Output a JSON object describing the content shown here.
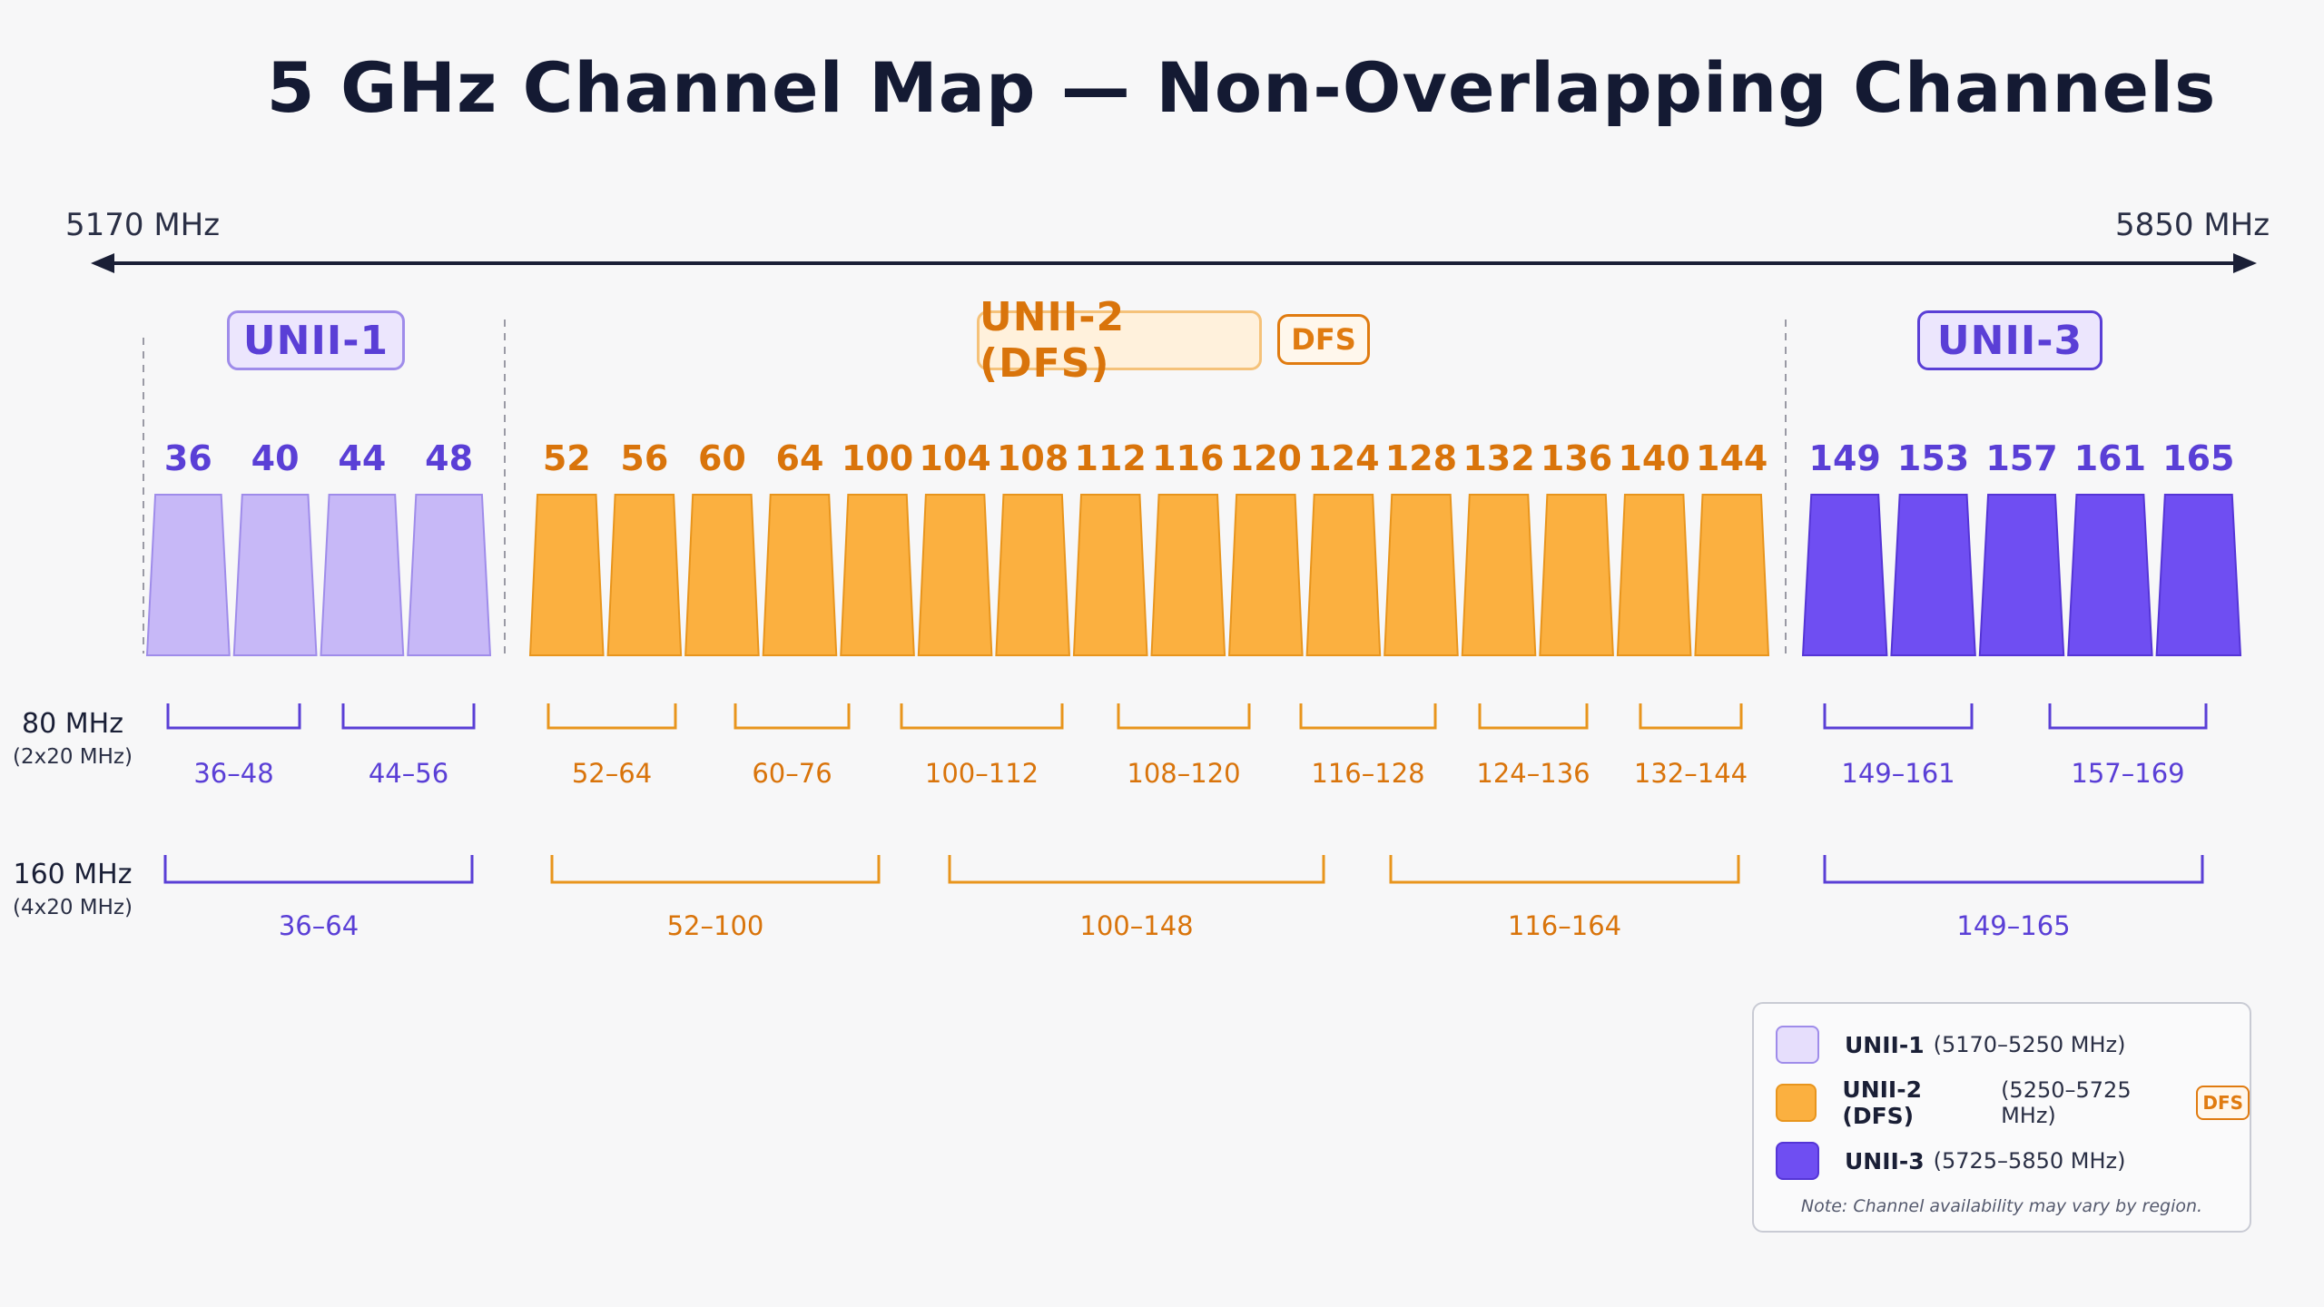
{
  "title": "5 GHz Channel Map — Non-Overlapping Channels",
  "freq_axis": {
    "start_label": "5170 MHz",
    "end_label": "5850 MHz"
  },
  "bands": [
    {
      "key": "unii1",
      "label": "UNII-1",
      "channels": [
        "36",
        "40",
        "44",
        "48"
      ]
    },
    {
      "key": "unii2",
      "label": "UNII-2 (DFS)",
      "badge": "DFS",
      "channels": [
        "52",
        "56",
        "60",
        "64",
        "100",
        "104",
        "108",
        "112",
        "116",
        "120",
        "124",
        "128",
        "132",
        "136",
        "140",
        "144"
      ]
    },
    {
      "key": "unii3",
      "label": "UNII-3",
      "channels": [
        "149",
        "153",
        "157",
        "161",
        "165"
      ]
    }
  ],
  "rows": {
    "w80": {
      "label": "80 MHz",
      "sublabel": "(2x20 MHz)"
    },
    "w160": {
      "label": "160 MHz",
      "sublabel": "(4x20 MHz)"
    }
  },
  "brackets_80": [
    {
      "band": "unii1",
      "label": "36–48"
    },
    {
      "band": "unii1",
      "label": "44–56"
    },
    {
      "band": "unii2",
      "label": "52–64"
    },
    {
      "band": "unii2",
      "label": "60–76"
    },
    {
      "band": "unii2",
      "label": "100–112"
    },
    {
      "band": "unii2",
      "label": "108–120"
    },
    {
      "band": "unii2",
      "label": "116–128"
    },
    {
      "band": "unii2",
      "label": "124–136"
    },
    {
      "band": "unii2",
      "label": "132–144"
    },
    {
      "band": "unii3",
      "label": "149–161"
    },
    {
      "band": "unii3",
      "label": "157–169"
    }
  ],
  "brackets_160": [
    {
      "band": "unii1",
      "label": "36–64"
    },
    {
      "band": "unii2",
      "label": "52–100"
    },
    {
      "band": "unii2",
      "label": "100–148"
    },
    {
      "band": "unii2",
      "label": "116–164"
    },
    {
      "band": "unii3",
      "label": "149–165"
    }
  ],
  "legend": {
    "items": [
      {
        "band": "unii1",
        "name": "UNII-1",
        "range": "(5170–5250 MHz)"
      },
      {
        "band": "unii2",
        "name": "UNII-2 (DFS)",
        "range": "(5250–5725 MHz)",
        "badge": "DFS"
      },
      {
        "band": "unii3",
        "name": "UNII-3",
        "range": "(5725–5850 MHz)"
      }
    ],
    "note": "Note: Channel availability may vary by region."
  },
  "colors": {
    "unii1_fill": "#c7b8f7",
    "unii1_stroke": "#9f8cea",
    "unii1_text": "#5a3fd6",
    "unii2_fill": "#fbb040",
    "unii2_stroke": "#e8951d",
    "unii2_text": "#d9740b",
    "unii3_fill": "#6f4ef2",
    "unii3_stroke": "#5535d6",
    "unii3_text": "#5a3fd6",
    "axis": "#1a1f36"
  }
}
